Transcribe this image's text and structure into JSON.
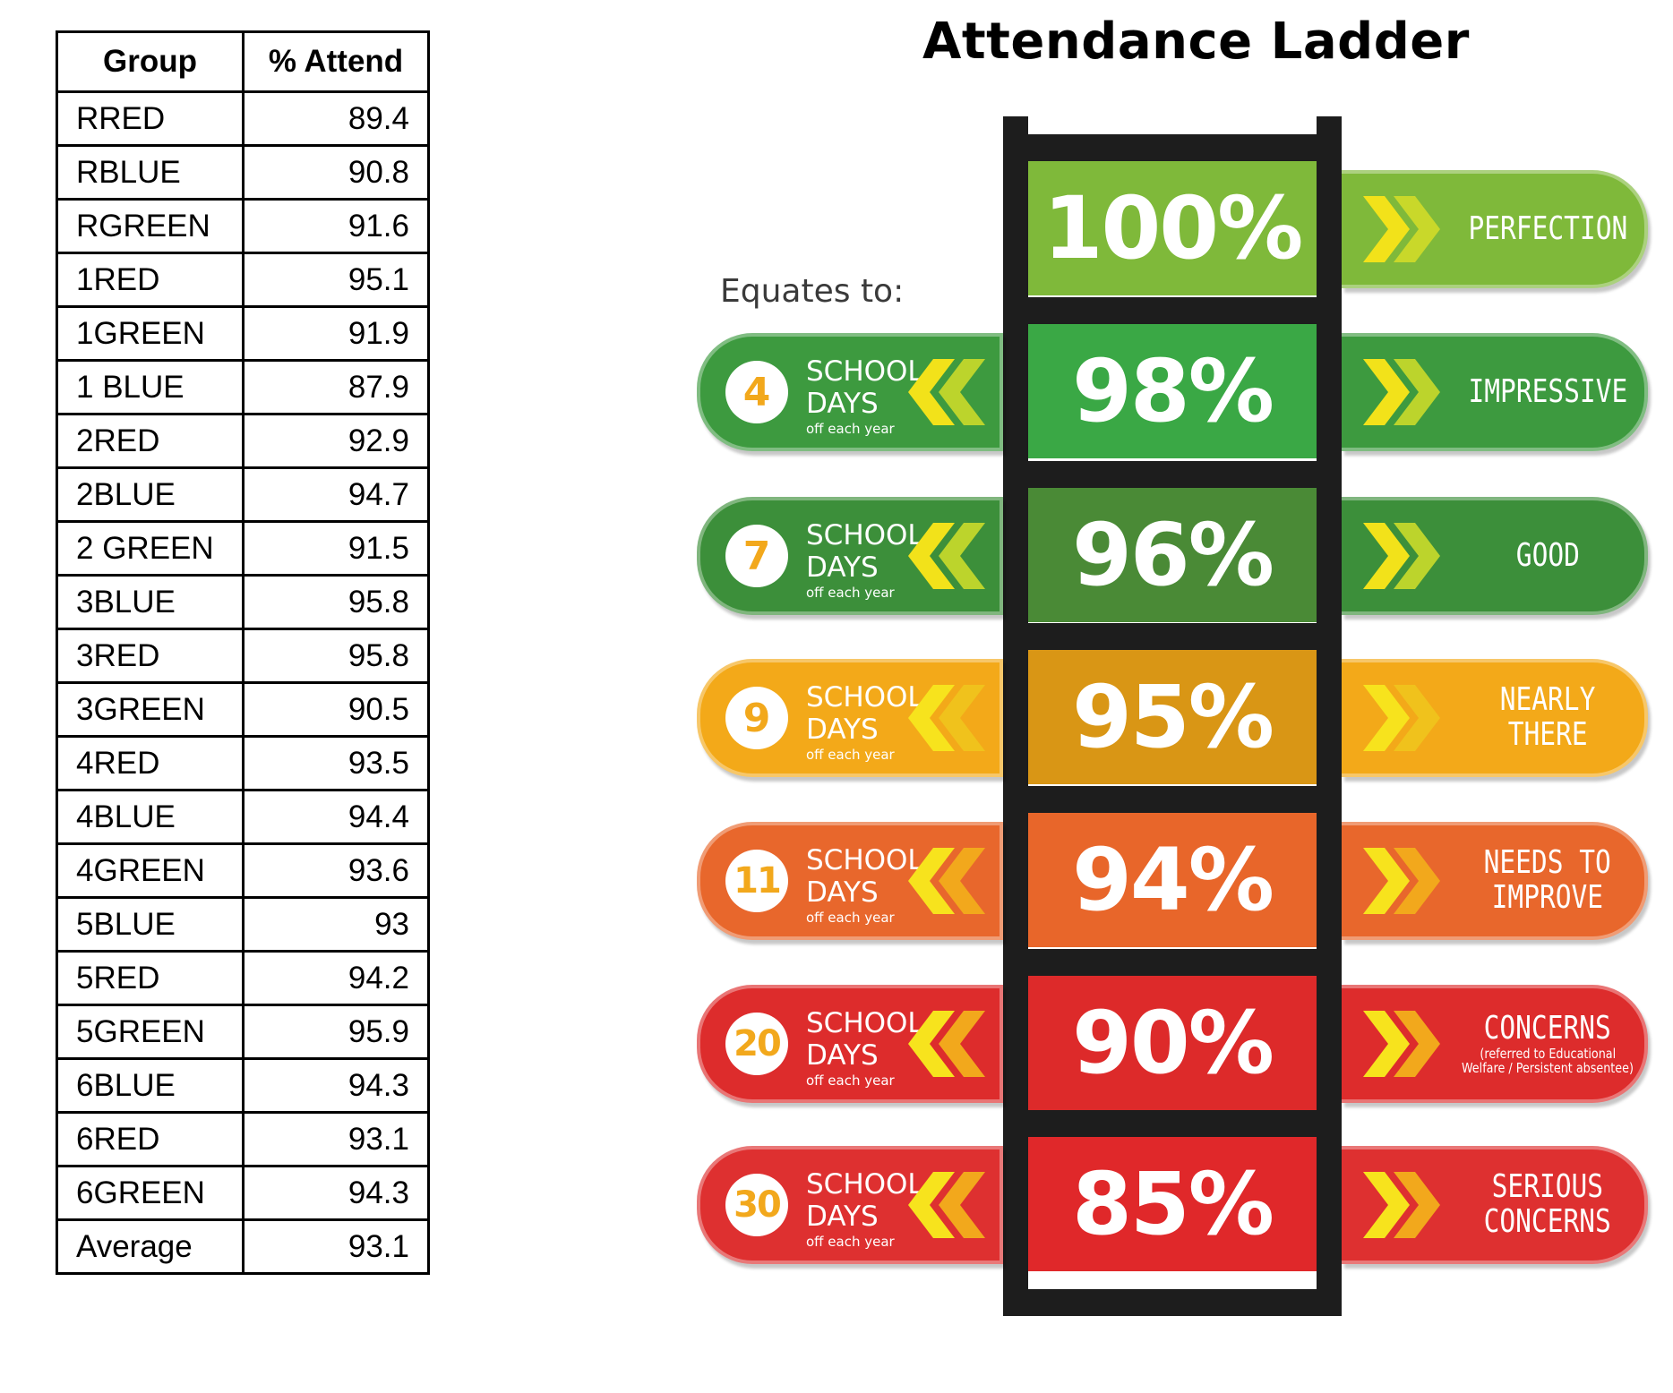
{
  "table": {
    "headers": [
      "Group",
      "% Attend"
    ],
    "rows": [
      [
        "RRED",
        "89.4"
      ],
      [
        "RBLUE",
        "90.8"
      ],
      [
        "RGREEN",
        "91.6"
      ],
      [
        "1RED",
        "95.1"
      ],
      [
        "1GREEN",
        "91.9"
      ],
      [
        "1 BLUE",
        "87.9"
      ],
      [
        "2RED",
        "92.9"
      ],
      [
        "2BLUE",
        "94.7"
      ],
      [
        "2 GREEN",
        "91.5"
      ],
      [
        "3BLUE",
        "95.8"
      ],
      [
        "3RED",
        "95.8"
      ],
      [
        "3GREEN",
        "90.5"
      ],
      [
        "4RED",
        "93.5"
      ],
      [
        "4BLUE",
        "94.4"
      ],
      [
        "4GREEN",
        "93.6"
      ],
      [
        "5BLUE",
        "93"
      ],
      [
        "5RED",
        "94.2"
      ],
      [
        "5GREEN",
        "95.9"
      ],
      [
        "6BLUE",
        "94.3"
      ],
      [
        "6RED",
        "93.1"
      ],
      [
        "6GREEN",
        "94.3"
      ],
      [
        "Average",
        "93.1"
      ]
    ]
  },
  "ladder": {
    "title": "Attendance Ladder",
    "equates_label": "Equates to:",
    "school_label": "SCHOOL",
    "days_label": "DAYS",
    "per_year_label": "off each year",
    "rungs": [
      {
        "percent": "100%",
        "days": null,
        "status": [
          "PERFECTION"
        ],
        "note": null,
        "rung_color": "#7fb93a",
        "pill_color": "#7fb93a",
        "chev_colors": [
          "#f2e21a",
          "#c9d82a"
        ],
        "badge_color": "#7fb93a"
      },
      {
        "percent": "98%",
        "days": "4",
        "status": [
          "IMPRESSIVE"
        ],
        "note": null,
        "rung_color": "#3aa845",
        "pill_color": "#3d9a3f",
        "chev_colors": [
          "#f2e21a",
          "#bcd42c"
        ],
        "badge_color": "#f2a81c"
      },
      {
        "percent": "96%",
        "days": "7",
        "status": [
          "GOOD"
        ],
        "note": null,
        "rung_color": "#4a8a36",
        "pill_color": "#3c8f3a",
        "chev_colors": [
          "#f2e21a",
          "#bcd42c"
        ],
        "badge_color": "#f2a81c"
      },
      {
        "percent": "95%",
        "days": "9",
        "status": [
          "NEARLY",
          "THERE"
        ],
        "note": null,
        "rung_color": "#d99615",
        "pill_color": "#f3a919",
        "chev_colors": [
          "#f7e31d",
          "#f0c21c"
        ],
        "badge_color": "#f2a81c"
      },
      {
        "percent": "94%",
        "days": "11",
        "status": [
          "NEEDS TO",
          "IMPROVE"
        ],
        "note": null,
        "rung_color": "#e8662a",
        "pill_color": "#e8672c",
        "chev_colors": [
          "#f7e31d",
          "#f2a81c"
        ],
        "badge_color": "#f2a81c"
      },
      {
        "percent": "90%",
        "days": "20",
        "status": [
          "CONCERNS"
        ],
        "note": [
          "(referred to Educational",
          "Welfare / Persistent absentee)"
        ],
        "rung_color": "#dd2a2a",
        "pill_color": "#dd2c2c",
        "chev_colors": [
          "#f7e31d",
          "#f2a81c"
        ],
        "badge_color": "#f2a81c"
      },
      {
        "percent": "85%",
        "days": "30",
        "status": [
          "SERIOUS",
          "CONCERNS"
        ],
        "note": null,
        "rung_color": "#e0282a",
        "pill_color": "#de3030",
        "chev_colors": [
          "#f7e31d",
          "#f2a81c"
        ],
        "badge_color": "#f2a81c"
      }
    ]
  }
}
